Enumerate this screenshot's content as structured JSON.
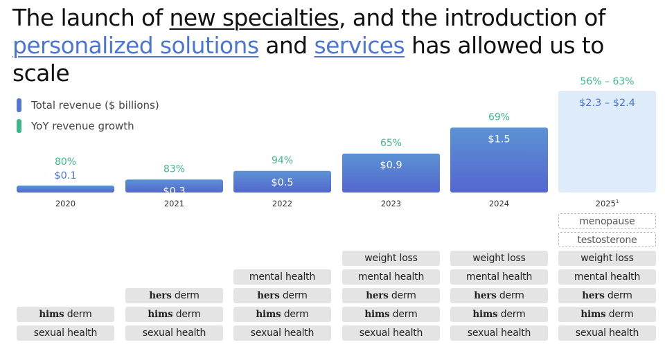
{
  "title": {
    "p1": "The launch of ",
    "u1": "new specialties",
    "p2": ", and the introduction of",
    "u2": "personalized solutions",
    "p3": " and ",
    "u3": "services",
    "p4": " has allowed us to scale"
  },
  "colors": {
    "bar_top": "#5b93d3",
    "bar_bottom": "#5566cf",
    "projected": "#deebf8",
    "growth": "#3fb68b",
    "blue_text": "#4b76d6"
  },
  "legend": [
    {
      "label": "Total revenue ($ billions)",
      "color": "#5477d1"
    },
    {
      "label": "YoY revenue growth",
      "color": "#3fb68b"
    }
  ],
  "chart_data": {
    "type": "bar",
    "title": "",
    "xlabel": "",
    "ylabel": "Total revenue ($ billions)",
    "categories": [
      "2020",
      "2021",
      "2022",
      "2023",
      "2024",
      "2025"
    ],
    "category_superscripts": [
      "",
      "",
      "",
      "",
      "",
      "1"
    ],
    "series": [
      {
        "name": "Total revenue ($ billions)",
        "values": [
          0.1,
          0.3,
          0.5,
          0.9,
          1.5,
          2.35
        ],
        "labels": [
          "$0.1",
          "$0.3",
          "$0.5",
          "$0.9",
          "$1.5",
          "$2.3 – $2.4"
        ]
      },
      {
        "name": "YoY revenue growth",
        "values": [
          80,
          83,
          94,
          65,
          69,
          59.5
        ],
        "labels": [
          "80%",
          "83%",
          "94%",
          "65%",
          "69%",
          "56% – 63%"
        ]
      }
    ],
    "projected": [
      false,
      false,
      false,
      false,
      false,
      true
    ],
    "ylim": [
      0,
      2.4
    ]
  },
  "specialties": [
    [
      {
        "brand": "hims",
        "rest": " derm"
      },
      {
        "text": "sexual health"
      }
    ],
    [
      {
        "brand": "hers",
        "rest": " derm"
      },
      {
        "brand": "hims",
        "rest": " derm"
      },
      {
        "text": "sexual health"
      }
    ],
    [
      {
        "text": "mental health"
      },
      {
        "brand": "hers",
        "rest": " derm"
      },
      {
        "brand": "hims",
        "rest": " derm"
      },
      {
        "text": "sexual health"
      }
    ],
    [
      {
        "text": "weight loss"
      },
      {
        "text": "mental health"
      },
      {
        "brand": "hers",
        "rest": " derm"
      },
      {
        "brand": "hims",
        "rest": " derm"
      },
      {
        "text": "sexual health"
      }
    ],
    [
      {
        "text": "weight loss"
      },
      {
        "text": "mental health"
      },
      {
        "brand": "hers",
        "rest": " derm"
      },
      {
        "brand": "hims",
        "rest": " derm"
      },
      {
        "text": "sexual health"
      }
    ],
    [
      {
        "text": "menopause",
        "upcoming": true
      },
      {
        "text": "testosterone",
        "upcoming": true
      },
      {
        "text": "weight loss"
      },
      {
        "text": "mental health"
      },
      {
        "brand": "hers",
        "rest": " derm"
      },
      {
        "brand": "hims",
        "rest": " derm"
      },
      {
        "text": "sexual health"
      }
    ]
  ]
}
